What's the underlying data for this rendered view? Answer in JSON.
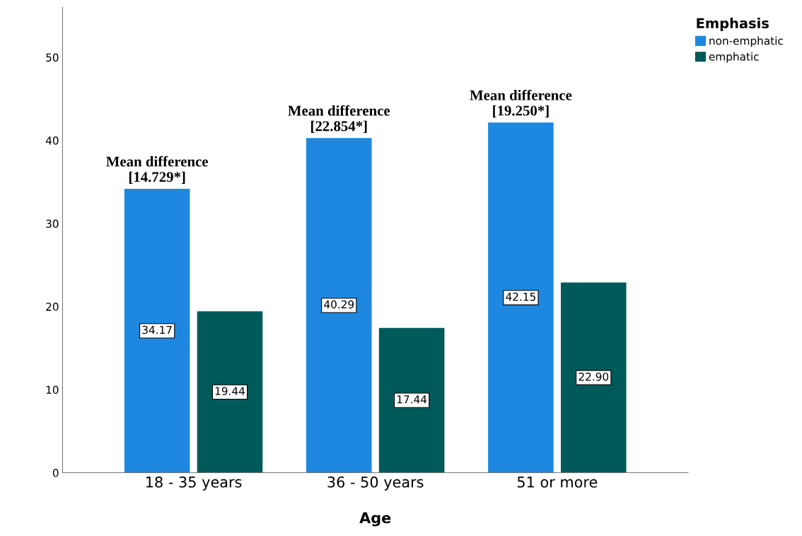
{
  "chart_data": {
    "type": "bar",
    "xlabel": "Age",
    "legend_title": "Emphasis",
    "categories": [
      "18 - 35 years",
      "36 - 50 years",
      "51 or more"
    ],
    "series": [
      {
        "name": "non-emphatic",
        "color": "#1e88e0",
        "values": [
          34.17,
          40.29,
          42.15
        ],
        "value_labels": [
          "34.17",
          "40.29",
          "42.15"
        ]
      },
      {
        "name": "emphatic",
        "color": "#005a5a",
        "values": [
          19.44,
          17.44,
          22.9
        ],
        "value_labels": [
          "19.44",
          "17.44",
          "22.90"
        ]
      }
    ],
    "ylim": [
      0,
      56
    ],
    "yticks": [
      0,
      10,
      20,
      30,
      40,
      50
    ],
    "grid": false,
    "legend": "top right",
    "annotations": [
      "Mean difference\n[14.729*]",
      "Mean difference\n[22.854*]",
      "Mean difference\n[19.250*]"
    ]
  }
}
